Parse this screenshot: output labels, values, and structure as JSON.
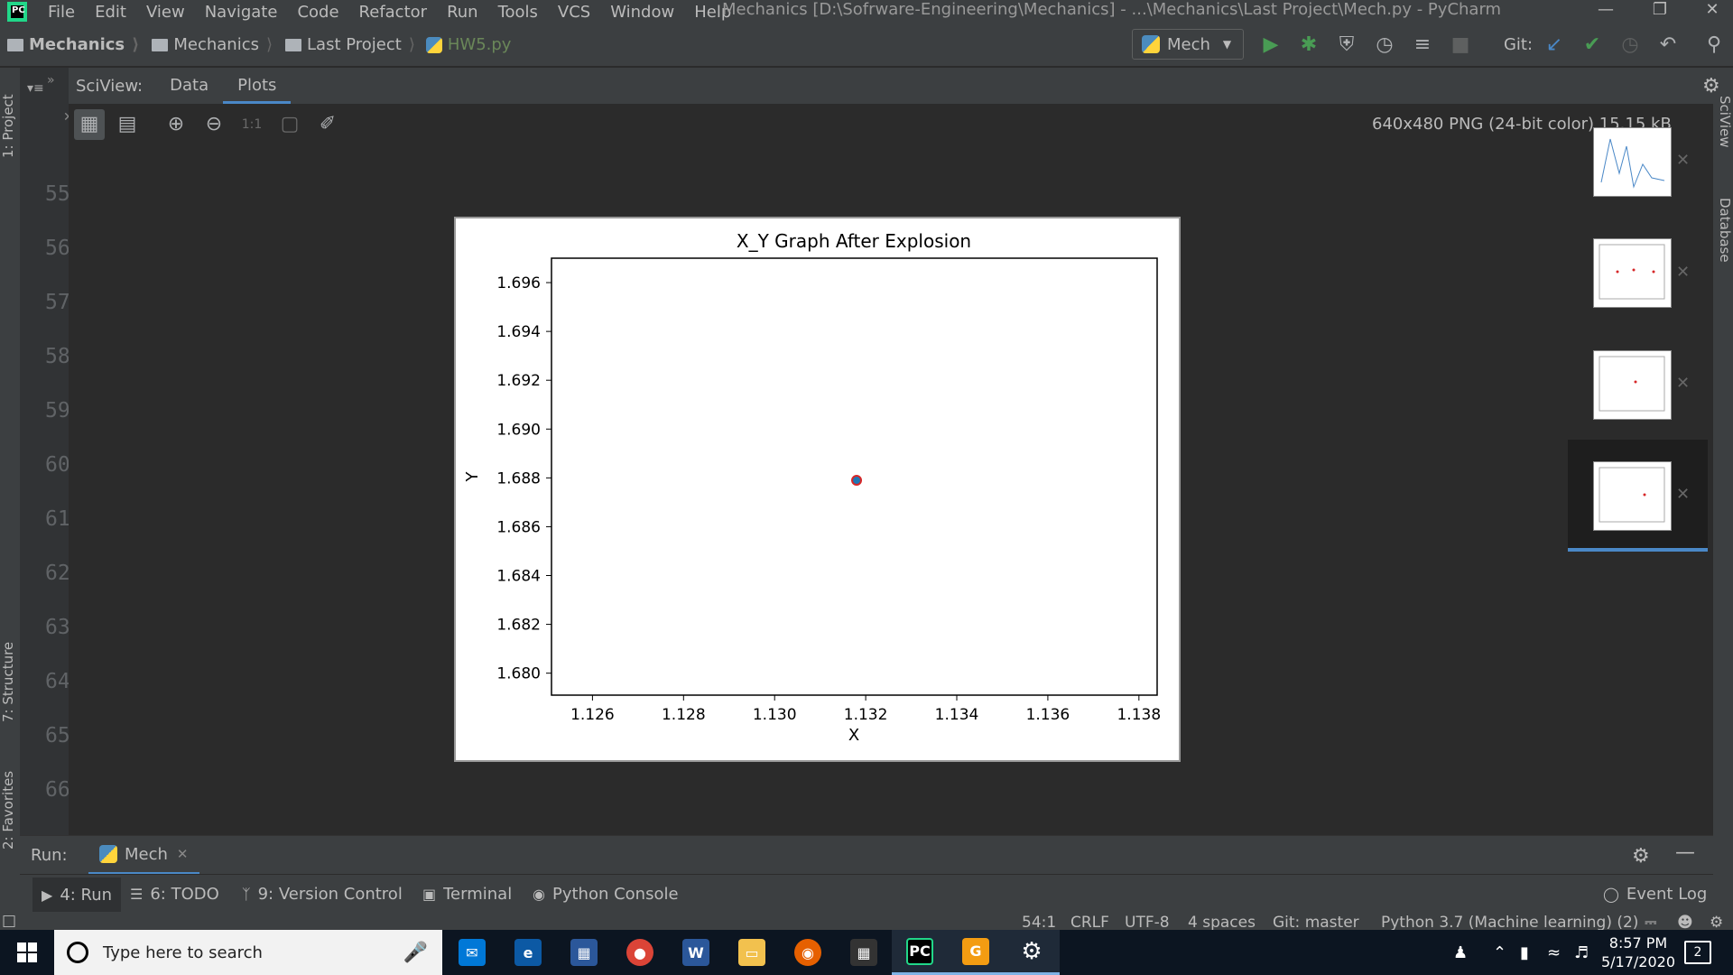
{
  "menubar": {
    "items": [
      "File",
      "Edit",
      "View",
      "Navigate",
      "Code",
      "Refactor",
      "Run",
      "Tools",
      "VCS",
      "Window",
      "Help"
    ],
    "window_title": "Mechanics [D:\\Sofrware-Engineering\\Mechanics] - ...\\Mechanics\\Last Project\\Mech.py - PyCharm",
    "logo_text": "PC"
  },
  "navbar": {
    "breadcrumbs": [
      "Mechanics",
      "Mechanics",
      "Last Project",
      "HW5.py"
    ],
    "run_config": "Mech",
    "git_label": "Git:"
  },
  "left_strip": {
    "tabs": [
      "1: Project",
      "7: Structure",
      "2: Favorites"
    ]
  },
  "right_strip": {
    "tabs": [
      "SciView",
      "Database"
    ]
  },
  "gutter": {
    "line_numbers": [
      "55",
      "56",
      "57",
      "58",
      "59",
      "60",
      "61",
      "62",
      "63",
      "64",
      "65",
      "66"
    ]
  },
  "sciview": {
    "label": "SciView:",
    "tabs": [
      "Data",
      "Plots"
    ],
    "active_tab": "Plots",
    "image_info": "640x480 PNG (24-bit color) 15.15 kB",
    "zoom_actual_label": "1:1"
  },
  "chart_data": {
    "type": "scatter",
    "title": "X_Y Graph After Explosion",
    "xlabel": "X",
    "ylabel": "Y",
    "xlim": [
      1.1251,
      1.1384
    ],
    "ylim": [
      1.6791,
      1.697
    ],
    "xticks": [
      "1.126",
      "1.128",
      "1.130",
      "1.132",
      "1.134",
      "1.136",
      "1.138"
    ],
    "yticks": [
      "1.680",
      "1.682",
      "1.684",
      "1.686",
      "1.688",
      "1.690",
      "1.692",
      "1.694",
      "1.696"
    ],
    "series": [
      {
        "x": [
          1.1318
        ],
        "y": [
          1.6879
        ],
        "color": "#1f77b4",
        "edge_color": "#d62728"
      }
    ],
    "grid": false
  },
  "thumbnails": {
    "count": 4,
    "active_index": 3
  },
  "run_panel": {
    "label": "Run:",
    "tab": "Mech"
  },
  "tool_buttons": [
    {
      "label": "4: Run",
      "icon": "play-icon"
    },
    {
      "label": "6: TODO",
      "icon": "list-icon"
    },
    {
      "label": "9: Version Control",
      "icon": "vcs-icon"
    },
    {
      "label": "Terminal",
      "icon": "terminal-icon"
    },
    {
      "label": "Python Console",
      "icon": "python-icon"
    },
    {
      "label": "Event Log",
      "icon": "bubble-icon"
    }
  ],
  "statusbar": {
    "position": "54:1",
    "line_sep": "CRLF",
    "encoding": "UTF-8",
    "indent": "4 spaces",
    "git": "Git: master",
    "interpreter": "Python 3.7 (Machine learning) (2)"
  },
  "taskbar": {
    "search_placeholder": "Type here to search",
    "time": "8:57 PM",
    "date": "5/17/2020",
    "notifications": "2"
  },
  "colors": {
    "accent": "#4a88c7",
    "run_green": "#499c54",
    "ide_bg": "#2b2b2b",
    "panel_bg": "#3c3f41"
  }
}
